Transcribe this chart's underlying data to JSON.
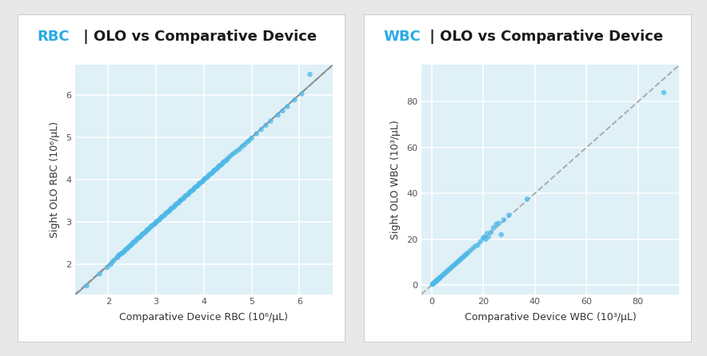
{
  "panel_bg": "#ffffff",
  "plot_bg": "#dff0f7",
  "outer_bg": "#e8e8e8",
  "rbc_title_colored": "RBC",
  "rbc_title_rest": " | OLO vs Comparative Device",
  "rbc_xlabel": "Comparative Device RBC (10⁶/μL)",
  "rbc_ylabel": "Sight OLO RBC (10⁶/μL)",
  "rbc_xlim": [
    1.3,
    6.7
  ],
  "rbc_ylim": [
    1.3,
    6.7
  ],
  "rbc_xticks": [
    2,
    3,
    4,
    5,
    6
  ],
  "rbc_yticks": [
    2,
    3,
    4,
    5,
    6
  ],
  "rbc_scatter_color": "#4db8e8",
  "rbc_reg_color": "#888888",
  "rbc_identity_color": "#aaaaaa",
  "wbc_title_colored": "WBC",
  "wbc_title_rest": " | OLO vs Comparative Device",
  "wbc_xlabel": "Comparative Device WBC (10³/μL)",
  "wbc_ylabel": "Sight OLO WBC (10³/μL)",
  "wbc_xlim": [
    -4,
    96
  ],
  "wbc_ylim": [
    -4,
    96
  ],
  "wbc_xticks": [
    0,
    20,
    40,
    60,
    80
  ],
  "wbc_yticks": [
    0,
    20,
    40,
    60,
    80
  ],
  "wbc_scatter_color": "#4db8e8",
  "wbc_reg_color": "#aaaaaa",
  "wbc_identity_color": "#aaaaaa",
  "title_color": "#29abe2",
  "title_fontsize": 13,
  "axis_label_fontsize": 9,
  "tick_fontsize": 8,
  "dot_size": 22,
  "dot_alpha": 0.75,
  "line_width": 1.4,
  "rbc_x": [
    1.55,
    1.82,
    1.98,
    2.05,
    2.08,
    2.12,
    2.18,
    2.2,
    2.22,
    2.25,
    2.28,
    2.3,
    2.33,
    2.35,
    2.38,
    2.4,
    2.42,
    2.45,
    2.48,
    2.5,
    2.52,
    2.55,
    2.58,
    2.6,
    2.62,
    2.65,
    2.68,
    2.7,
    2.72,
    2.75,
    2.78,
    2.8,
    2.82,
    2.85,
    2.88,
    2.9,
    2.92,
    2.95,
    2.98,
    3.0,
    3.02,
    3.05,
    3.08,
    3.1,
    3.12,
    3.15,
    3.18,
    3.2,
    3.22,
    3.25,
    3.28,
    3.3,
    3.32,
    3.35,
    3.38,
    3.4,
    3.42,
    3.45,
    3.48,
    3.5,
    3.52,
    3.55,
    3.58,
    3.6,
    3.62,
    3.65,
    3.68,
    3.7,
    3.72,
    3.75,
    3.78,
    3.8,
    3.82,
    3.85,
    3.88,
    3.9,
    3.92,
    3.95,
    3.98,
    4.0,
    4.02,
    4.05,
    4.08,
    4.1,
    4.12,
    4.15,
    4.18,
    4.2,
    4.22,
    4.25,
    4.28,
    4.3,
    4.32,
    4.35,
    4.38,
    4.4,
    4.42,
    4.45,
    4.48,
    4.5,
    4.55,
    4.6,
    4.65,
    4.7,
    4.75,
    4.8,
    4.85,
    4.9,
    4.95,
    5.0,
    5.1,
    5.2,
    5.3,
    5.4,
    5.55,
    5.65,
    5.75,
    5.9,
    6.05,
    6.22
  ],
  "rbc_y": [
    1.5,
    1.78,
    1.93,
    2.0,
    2.05,
    2.1,
    2.16,
    2.18,
    2.22,
    2.24,
    2.26,
    2.28,
    2.3,
    2.34,
    2.36,
    2.38,
    2.4,
    2.44,
    2.46,
    2.48,
    2.52,
    2.54,
    2.56,
    2.6,
    2.62,
    2.64,
    2.66,
    2.7,
    2.72,
    2.74,
    2.76,
    2.8,
    2.82,
    2.84,
    2.88,
    2.9,
    2.92,
    2.94,
    2.96,
    3.0,
    3.02,
    3.04,
    3.06,
    3.1,
    3.12,
    3.14,
    3.16,
    3.2,
    3.22,
    3.24,
    3.26,
    3.3,
    3.32,
    3.34,
    3.36,
    3.4,
    3.42,
    3.44,
    3.46,
    3.5,
    3.52,
    3.54,
    3.56,
    3.6,
    3.62,
    3.64,
    3.66,
    3.7,
    3.72,
    3.74,
    3.76,
    3.8,
    3.82,
    3.84,
    3.86,
    3.9,
    3.92,
    3.94,
    3.96,
    4.0,
    4.02,
    4.04,
    4.06,
    4.1,
    4.12,
    4.14,
    4.16,
    4.2,
    4.22,
    4.24,
    4.26,
    4.3,
    4.32,
    4.34,
    4.36,
    4.4,
    4.42,
    4.44,
    4.46,
    4.5,
    4.55,
    4.6,
    4.64,
    4.68,
    4.72,
    4.78,
    4.82,
    4.88,
    4.92,
    4.98,
    5.08,
    5.18,
    5.28,
    5.38,
    5.52,
    5.62,
    5.72,
    5.88,
    6.02,
    6.48
  ],
  "wbc_x": [
    0.3,
    0.5,
    0.7,
    0.9,
    1.1,
    1.3,
    1.5,
    1.7,
    1.9,
    2.1,
    2.3,
    2.5,
    2.7,
    2.9,
    3.2,
    3.5,
    4.0,
    4.5,
    5.0,
    5.5,
    6.0,
    6.5,
    7.0,
    7.5,
    8.0,
    8.5,
    9.0,
    9.5,
    10.0,
    10.5,
    11.0,
    11.5,
    12.0,
    12.5,
    13.0,
    13.5,
    14.0,
    15.0,
    16.0,
    17.0,
    18.0,
    19.0,
    20.0,
    20.5,
    21.0,
    21.5,
    22.0,
    23.0,
    24.0,
    25.0,
    26.0,
    27.0,
    28.0,
    30.0,
    37.0,
    90.0
  ],
  "wbc_y": [
    0.3,
    0.5,
    0.7,
    0.9,
    1.1,
    1.3,
    1.5,
    1.7,
    1.9,
    2.1,
    2.3,
    2.5,
    2.7,
    2.9,
    3.2,
    3.5,
    4.0,
    4.5,
    5.0,
    5.5,
    6.0,
    6.5,
    7.0,
    7.5,
    8.0,
    8.5,
    9.0,
    9.5,
    10.0,
    10.5,
    11.0,
    11.5,
    12.0,
    12.5,
    13.0,
    13.5,
    14.0,
    15.0,
    16.0,
    17.0,
    17.5,
    19.0,
    20.5,
    21.0,
    20.0,
    22.5,
    21.0,
    23.0,
    25.0,
    26.5,
    27.0,
    22.0,
    28.5,
    30.5,
    37.5,
    84.0
  ]
}
